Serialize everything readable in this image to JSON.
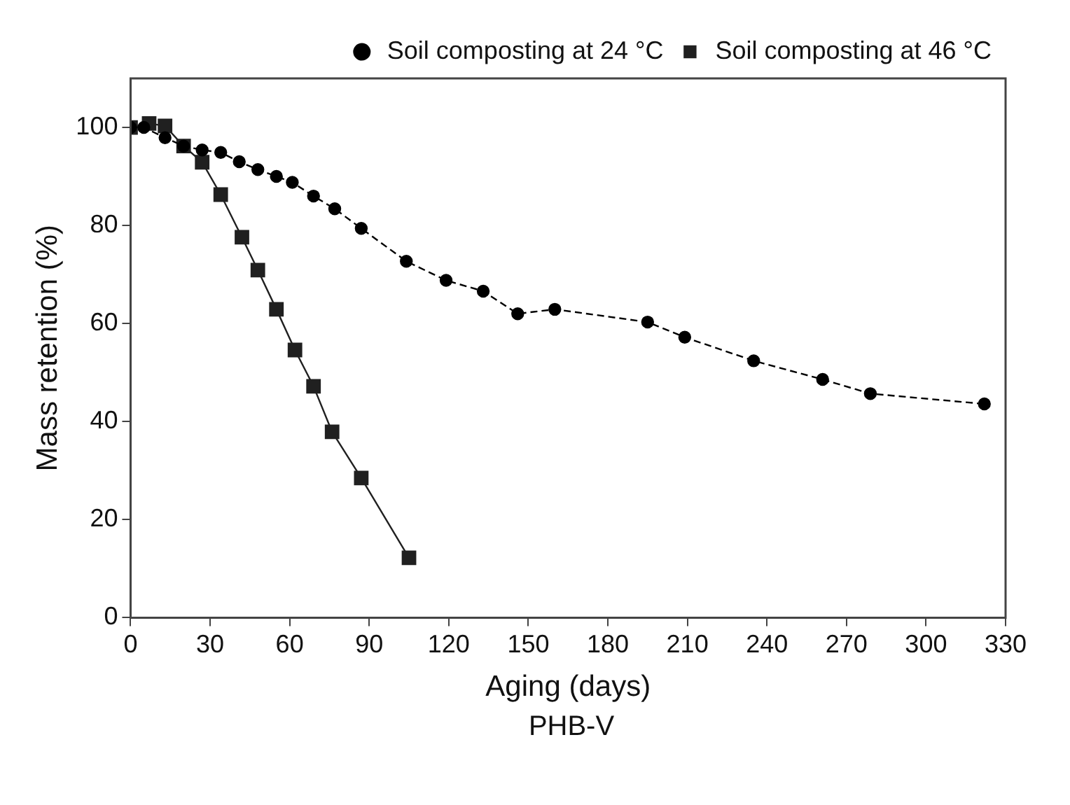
{
  "chart_data": {
    "type": "line",
    "xlabel": "Aging (days)",
    "ylabel": "Mass retention (%)",
    "annotations": [
      "PHB-V"
    ],
    "xlim": [
      0,
      330
    ],
    "xticks": [
      0,
      30,
      60,
      90,
      120,
      150,
      180,
      210,
      240,
      270,
      300,
      330
    ],
    "ylim": [
      0,
      110
    ],
    "yticks": [
      0,
      20,
      40,
      60,
      80,
      100
    ],
    "grid": false,
    "legend": "top right",
    "series": [
      {
        "name": "Soil composting at 24 °C",
        "color": "#000000",
        "marker": "circle",
        "line_style": "dashed",
        "x": [
          0,
          5,
          13,
          20,
          27,
          34,
          41,
          48,
          55,
          61,
          69,
          77,
          87,
          104,
          119,
          133,
          146,
          160,
          195,
          209,
          235,
          261,
          279,
          322
        ],
        "values": [
          100,
          100,
          97.9,
          96.2,
          95.4,
          94.9,
          93,
          91.4,
          90,
          88.8,
          86,
          83.4,
          79.4,
          72.7,
          68.8,
          66.6,
          62,
          62.9,
          60.3,
          57.2,
          52.4,
          48.6,
          45.7,
          43.6
        ]
      },
      {
        "name": "Soil composting at 46 °C",
        "color": "#202020",
        "marker": "square",
        "line_style": "solid",
        "x": [
          0,
          7,
          13,
          20,
          27,
          34,
          42,
          48,
          55,
          62,
          69,
          76,
          87,
          105
        ],
        "values": [
          100,
          100.8,
          100.3,
          96.2,
          92.9,
          86.3,
          77.6,
          70.9,
          62.9,
          54.6,
          47.2,
          37.9,
          28.5,
          12.2
        ]
      }
    ]
  }
}
